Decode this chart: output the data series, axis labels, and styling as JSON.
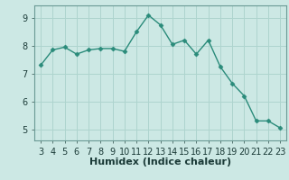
{
  "x": [
    3,
    4,
    5,
    6,
    7,
    8,
    9,
    10,
    11,
    12,
    13,
    14,
    15,
    16,
    17,
    18,
    19,
    20,
    21,
    22,
    23
  ],
  "y": [
    7.3,
    7.85,
    7.95,
    7.7,
    7.85,
    7.9,
    7.9,
    7.8,
    8.5,
    9.1,
    8.75,
    8.05,
    8.2,
    7.7,
    8.2,
    7.25,
    6.65,
    6.2,
    5.3,
    5.3,
    5.05
  ],
  "line_color": "#2a8b7a",
  "marker": "D",
  "marker_size": 2.5,
  "bg_color": "#cce8e4",
  "grid_color": "#aed4ce",
  "spine_color": "#6a9a95",
  "xlabel": "Humidex (Indice chaleur)",
  "xlabel_fontsize": 8,
  "tick_fontsize": 7,
  "xlim": [
    2.5,
    23.5
  ],
  "ylim": [
    4.6,
    9.45
  ],
  "yticks": [
    5,
    6,
    7,
    8,
    9
  ],
  "xticks": [
    3,
    4,
    5,
    6,
    7,
    8,
    9,
    10,
    11,
    12,
    13,
    14,
    15,
    16,
    17,
    18,
    19,
    20,
    21,
    22,
    23
  ]
}
